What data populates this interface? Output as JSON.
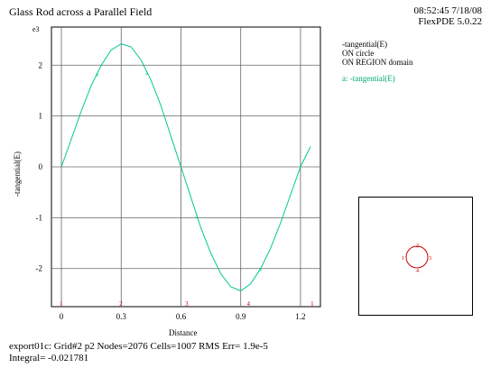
{
  "header": {
    "title": "Glass Rod across a Parallel Field",
    "time_date": "08:52:45 7/18/08",
    "software": "FlexPDE 5.0.22"
  },
  "legend": {
    "line1": "-tangential(E)",
    "line2": "ON circle",
    "line3": "ON REGION domain",
    "series_entry": "a: -tangential(E)"
  },
  "footer": {
    "line1": "export01c:  Grid#2  p2  Nodes=2076 Cells=1007 RMS Err= 1.9e-5",
    "line2": "Integral= -0.021781"
  },
  "chart_data": {
    "type": "line",
    "title": "Glass Rod across a Parallel Field",
    "xlabel": "Distance",
    "ylabel": "-tangential(E)",
    "y_exponent_label": "e3",
    "xlim": [
      -0.05,
      1.3
    ],
    "ylim": [
      -2.75,
      2.75
    ],
    "x_ticks": [
      0,
      0.3,
      0.6,
      0.9,
      1.2
    ],
    "x_tick_labels": [
      "0",
      "0.3",
      "0.6",
      "0.9",
      "1.2"
    ],
    "y_ticks": [
      -2,
      -1,
      0,
      1,
      2
    ],
    "y_tick_labels": [
      "-2",
      "-1",
      "0",
      "1",
      "2"
    ],
    "grid": true,
    "series": [
      {
        "name": "-tangential(E)",
        "marker_label": "a",
        "color": "#00c896",
        "x": [
          0,
          0.05,
          0.1,
          0.15,
          0.2,
          0.25,
          0.3,
          0.35,
          0.4,
          0.45,
          0.5,
          0.55,
          0.6,
          0.65,
          0.7,
          0.75,
          0.8,
          0.85,
          0.9,
          0.95,
          1.0,
          1.05,
          1.1,
          1.15,
          1.2,
          1.25
        ],
        "values": [
          0.0,
          0.55,
          1.1,
          1.6,
          2.0,
          2.3,
          2.42,
          2.36,
          2.1,
          1.7,
          1.2,
          0.6,
          0.0,
          -0.6,
          -1.2,
          -1.7,
          -2.1,
          -2.36,
          -2.44,
          -2.3,
          -2.0,
          -1.6,
          -1.1,
          -0.55,
          0.0,
          0.4
        ]
      }
    ],
    "curve_labels_x": [
      0.18,
      0.43,
      0.68,
      1.0
    ],
    "region_markers": {
      "labels": [
        "1",
        "2",
        "3",
        "4",
        "1"
      ],
      "x": [
        0,
        0.3,
        0.63,
        0.94,
        1.26
      ]
    }
  },
  "inset": {
    "labels": [
      "1",
      "2",
      "3",
      "4"
    ],
    "color": "#cc0000"
  }
}
